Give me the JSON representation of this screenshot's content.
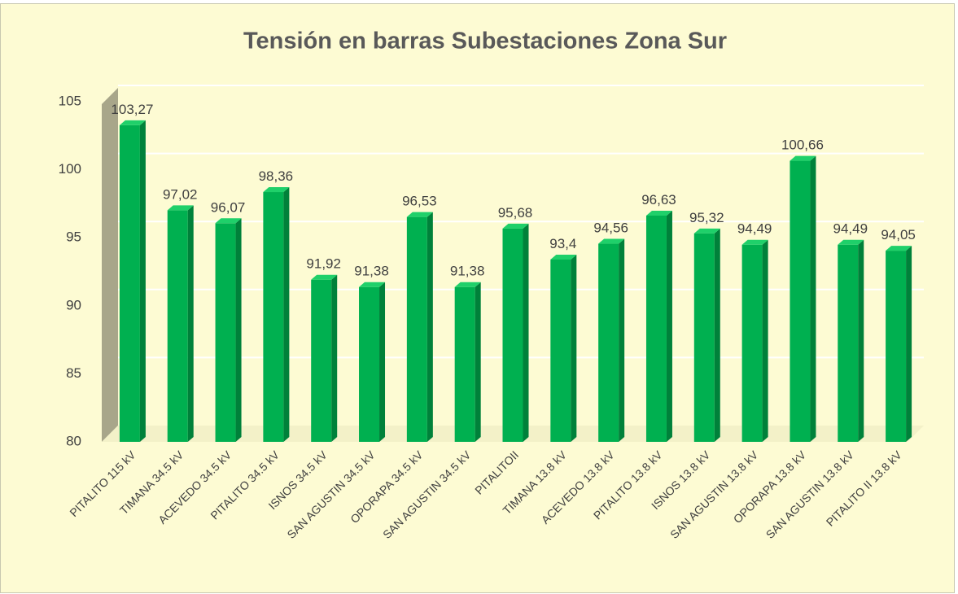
{
  "chart_data": {
    "type": "bar",
    "title": "Tensión en barras Subestaciones Zona Sur",
    "categories": [
      "PITALITO 115 kV",
      "TIMANA 34.5 kV",
      "ACEVEDO 34.5 kV",
      "PITALITO 34.5 kV",
      "ISNOS 34.5 kV",
      "SAN AGUSTIN 34.5 kV",
      "OPORAPA 34.5 kV",
      "SAN AGUSTIN 34.5 kV",
      "PITALITOII",
      "TIMANA 13.8 kV",
      "ACEVEDO 13.8 kV",
      "PITALITO 13.8 kV",
      "ISNOS 13.8 kV",
      "SAN AGUSTIN 13.8 kV",
      "OPORAPA 13.8 kV",
      "SAN AGUSTIN 13.8 kV",
      "PITALITO II 13.8 kV"
    ],
    "values": [
      103.27,
      97.02,
      96.07,
      98.36,
      91.92,
      91.38,
      96.53,
      91.38,
      95.68,
      93.4,
      94.56,
      96.63,
      95.32,
      94.49,
      100.66,
      94.49,
      94.05
    ],
    "value_labels": [
      "103,27",
      "97,02",
      "96,07",
      "98,36",
      "91,92",
      "91,38",
      "96,53",
      "91,38",
      "95,68",
      "93,4",
      "94,56",
      "96,63",
      "95,32",
      "94,49",
      "100,66",
      "94,49",
      "94,05"
    ],
    "color": "#00b050",
    "ylim": [
      80,
      105
    ],
    "yticks": [
      80,
      85,
      90,
      95,
      100,
      105
    ],
    "grid": true
  }
}
